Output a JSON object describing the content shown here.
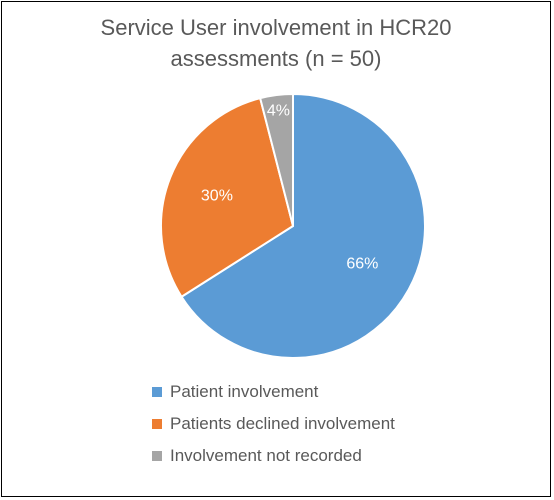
{
  "chart_data": {
    "type": "pie",
    "title_lines": [
      "Service User involvement in HCR20",
      "assessments (n = 50)"
    ],
    "categories": [
      "Patient involvement",
      "Patients declined involvement",
      "Involvement not recorded"
    ],
    "values": [
      66,
      30,
      4
    ],
    "data_labels": [
      "66%",
      "30%",
      "4%"
    ],
    "colors": [
      "#5B9BD5",
      "#ED7D31",
      "#A5A5A5"
    ],
    "legend_position": "bottom"
  }
}
